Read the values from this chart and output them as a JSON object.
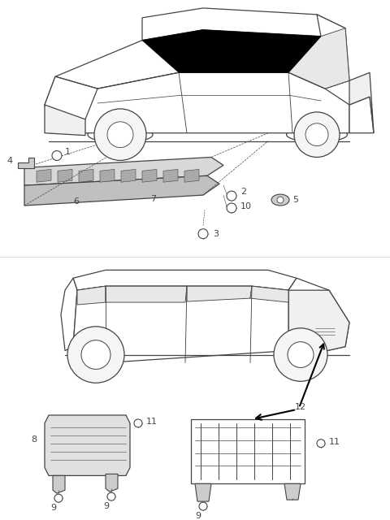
{
  "bg_color": "#ffffff",
  "fig_width": 4.8,
  "fig_height": 6.4,
  "dpi": 100,
  "lc": "#444444",
  "lw": 0.9,
  "lw_thin": 0.5,
  "lw_thick": 1.2
}
